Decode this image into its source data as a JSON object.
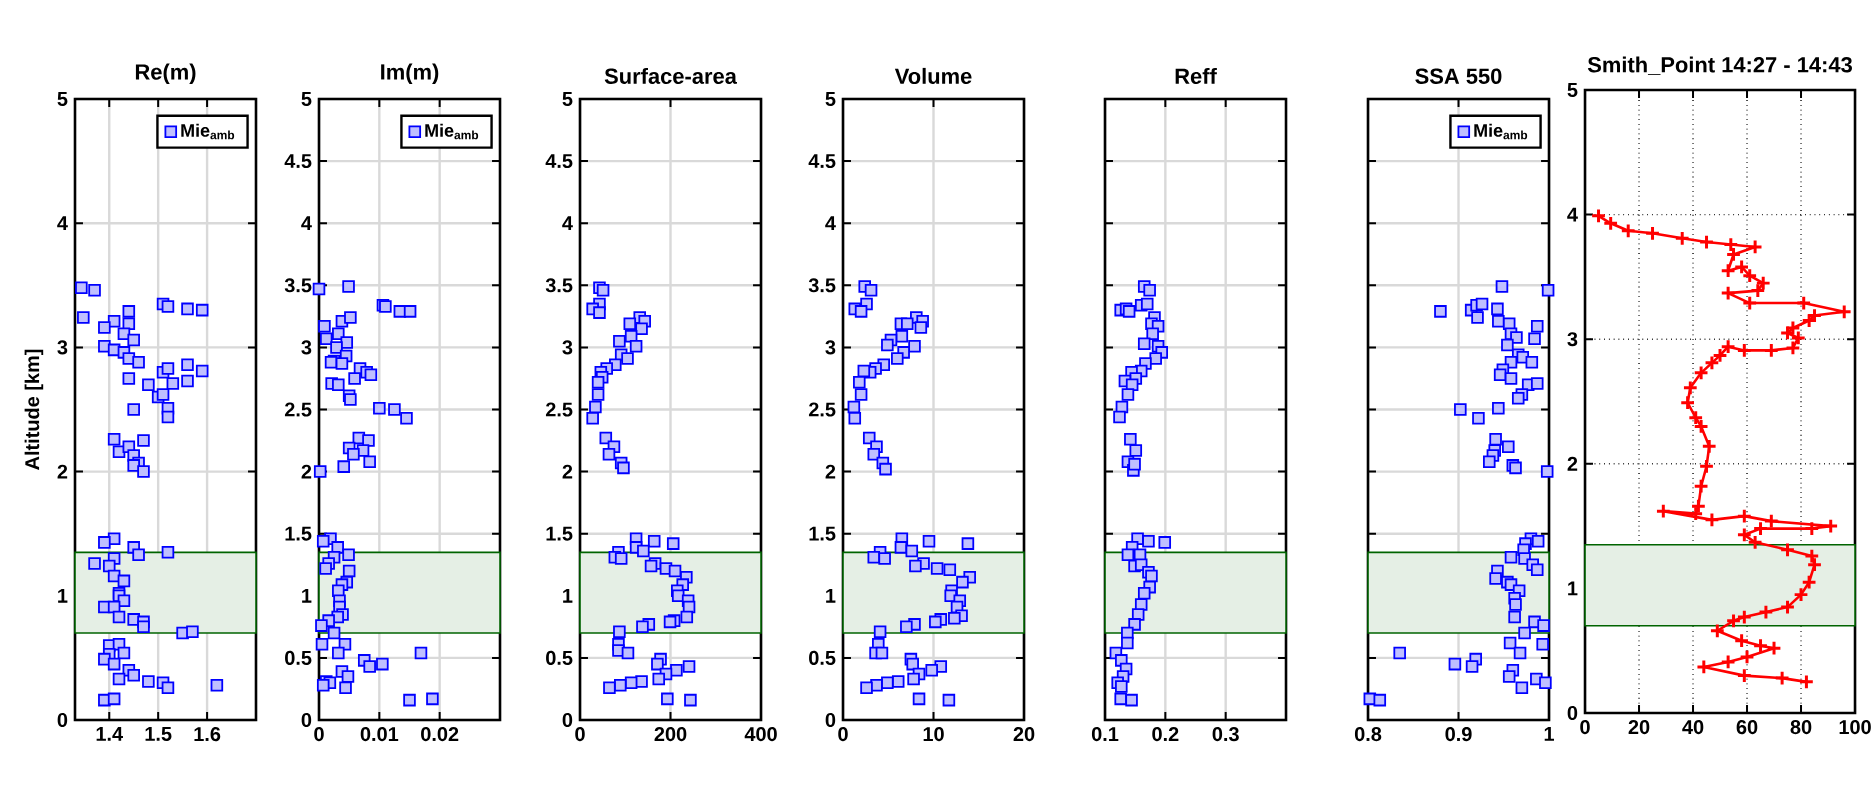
{
  "chart_data": [
    {
      "type": "scatter",
      "title": "Re(m)",
      "ylabel": "Altitude [km]",
      "xlim": [
        1.33,
        1.7
      ],
      "ylim": [
        0,
        5
      ],
      "xticks": [
        1.4,
        1.5,
        1.6
      ],
      "yticks": [
        0,
        1,
        2,
        3,
        4,
        5
      ],
      "grid": true,
      "legend": "top right",
      "marker": "square",
      "bands": [
        {
          "axis": "y",
          "from": 0.7,
          "to": 1.35,
          "color": "#006400"
        }
      ],
      "series": [
        {
          "name": "Mie$_{amb}$",
          "color": "#0000ff",
          "x": [
            1.343,
            1.37,
            1.347,
            1.51,
            1.52,
            1.56,
            1.59,
            1.41,
            1.44,
            1.44,
            1.39,
            1.43,
            1.45,
            1.39,
            1.41,
            1.43,
            1.44,
            1.46,
            1.44,
            1.48,
            1.51,
            1.52,
            1.56,
            1.56,
            1.59,
            1.53,
            1.5,
            1.51,
            1.52,
            1.52,
            1.45,
            1.41,
            1.47,
            1.42,
            1.44,
            1.45,
            1.46,
            1.45,
            1.47,
            1.41,
            1.39,
            1.45,
            1.46,
            1.52,
            1.41,
            1.37,
            1.4,
            1.41,
            1.43,
            1.42,
            1.42,
            1.43,
            1.39,
            1.41,
            1.42,
            1.45,
            1.47,
            1.47,
            1.55,
            1.57,
            1.4,
            1.42,
            1.43,
            1.4,
            1.39,
            1.41,
            1.44,
            1.45,
            1.42,
            1.48,
            1.51,
            1.52,
            1.62,
            1.39,
            1.41
          ],
          "values": [
            3.48,
            3.46,
            3.24,
            3.35,
            3.33,
            3.31,
            3.3,
            3.21,
            3.29,
            3.19,
            3.16,
            3.11,
            3.06,
            3.01,
            2.98,
            2.96,
            2.91,
            2.88,
            2.75,
            2.7,
            2.8,
            2.83,
            2.86,
            2.73,
            2.81,
            2.71,
            2.6,
            2.62,
            2.51,
            2.44,
            2.5,
            2.26,
            2.25,
            2.16,
            2.2,
            2.13,
            2.07,
            2.05,
            2.0,
            1.46,
            1.43,
            1.39,
            1.33,
            1.35,
            1.3,
            1.26,
            1.24,
            1.16,
            1.12,
            1.02,
            1.0,
            0.96,
            0.91,
            0.91,
            0.83,
            0.81,
            0.79,
            0.75,
            0.7,
            0.71,
            0.6,
            0.61,
            0.54,
            0.53,
            0.49,
            0.45,
            0.4,
            0.36,
            0.33,
            0.31,
            0.3,
            0.26,
            0.28,
            0.16,
            0.17
          ]
        }
      ]
    },
    {
      "type": "scatter",
      "title": "Im(m)",
      "xlim": [
        0,
        0.03
      ],
      "ylim": [
        0,
        5
      ],
      "xticks": [
        0,
        0.01,
        0.02
      ],
      "yticks": [
        0,
        0.5,
        1,
        1.5,
        2,
        2.5,
        3,
        3.5,
        4,
        4.5,
        5
      ],
      "grid": true,
      "legend": "top right",
      "marker": "square",
      "bands": [
        {
          "axis": "y",
          "from": 0.7,
          "to": 1.35,
          "color": "#006400"
        }
      ],
      "series": [
        {
          "name": "Mie$_{amb}$",
          "color": "#0000ff",
          "x": [
            0,
            0.0049,
            0.0106,
            0.011,
            0.0134,
            0.0151,
            0.0009,
            0.0038,
            0.0052,
            0.0012,
            0.0032,
            0.0046,
            0.0029,
            0.0045,
            0.0025,
            0.002,
            0.0038,
            0.0068,
            0.0079,
            0.0086,
            0.0059,
            0.0021,
            0.0032,
            0.005,
            0.0052,
            0.01,
            0.0125,
            0.0145,
            0.0066,
            0.0082,
            0.005,
            0.0073,
            0.0057,
            0.0084,
            0.0041,
            0.0002,
            0.0019,
            0.0007,
            0.0031,
            0.0049,
            0.0025,
            0.0016,
            0.0011,
            0.005,
            0.0046,
            0.0038,
            0.0032,
            0.0034,
            0.0034,
            0.0039,
            0.0031,
            0.0016,
            0.0004,
            0.0025,
            0.0005,
            0.0043,
            0.0032,
            0.0169,
            0.0075,
            0.0084,
            0.0105,
            0.0038,
            0.0048,
            0.0012,
            0.0018,
            0.0007,
            0.0044,
            0.015,
            0.0188
          ],
          "values": [
            3.47,
            3.49,
            3.34,
            3.33,
            3.29,
            3.29,
            3.17,
            3.21,
            3.24,
            3.07,
            3.11,
            3.04,
            3.0,
            2.93,
            2.89,
            2.88,
            2.87,
            2.83,
            2.8,
            2.78,
            2.75,
            2.71,
            2.7,
            2.61,
            2.58,
            2.51,
            2.5,
            2.43,
            2.27,
            2.25,
            2.19,
            2.17,
            2.14,
            2.08,
            2.04,
            2.0,
            1.46,
            1.44,
            1.39,
            1.33,
            1.31,
            1.26,
            1.22,
            1.2,
            1.11,
            1.09,
            1.04,
            0.96,
            0.91,
            0.85,
            0.83,
            0.8,
            0.76,
            0.7,
            0.61,
            0.61,
            0.54,
            0.54,
            0.48,
            0.43,
            0.45,
            0.39,
            0.35,
            0.31,
            0.3,
            0.28,
            0.26,
            0.16,
            0.17
          ]
        }
      ]
    },
    {
      "type": "scatter",
      "title": "Surface-area",
      "xlim": [
        0,
        400
      ],
      "ylim": [
        0,
        5
      ],
      "xticks": [
        0,
        200,
        400
      ],
      "yticks": [
        0,
        0.5,
        1,
        1.5,
        2,
        2.5,
        3,
        3.5,
        4,
        4.5,
        5
      ],
      "grid": true,
      "marker": "square",
      "bands": [
        {
          "axis": "y",
          "from": 0.7,
          "to": 1.35,
          "color": "#006400"
        }
      ],
      "series": [
        {
          "color": "#0000ff",
          "x": [
            43,
            51,
            43,
            28,
            43,
            132,
            143,
            110,
            136,
            113,
            87,
            124,
            91,
            105,
            78,
            59,
            46,
            49,
            40,
            40,
            34,
            28,
            57,
            75,
            64,
            91,
            96,
            124,
            164,
            206,
            124,
            140,
            85,
            77,
            91,
            166,
            157,
            190,
            210,
            235,
            227,
            215,
            217,
            239,
            241,
            236,
            208,
            199,
            152,
            138,
            87,
            85,
            85,
            106,
            178,
            171,
            241,
            213,
            190,
            174,
            136,
            113,
            89,
            65,
            193,
            244
          ],
          "values": [
            3.48,
            3.46,
            3.35,
            3.31,
            3.28,
            3.24,
            3.21,
            3.19,
            3.15,
            3.09,
            3.05,
            3.01,
            2.94,
            2.91,
            2.86,
            2.83,
            2.8,
            2.76,
            2.72,
            2.62,
            2.52,
            2.43,
            2.27,
            2.2,
            2.14,
            2.07,
            2.03,
            1.46,
            1.44,
            1.42,
            1.39,
            1.36,
            1.35,
            1.31,
            1.3,
            1.26,
            1.24,
            1.22,
            1.2,
            1.15,
            1.09,
            1.04,
            1.0,
            0.96,
            0.91,
            0.83,
            0.8,
            0.79,
            0.77,
            0.75,
            0.71,
            0.61,
            0.56,
            0.54,
            0.49,
            0.45,
            0.43,
            0.4,
            0.37,
            0.33,
            0.31,
            0.3,
            0.28,
            0.26,
            0.17,
            0.16
          ]
        }
      ]
    },
    {
      "type": "scatter",
      "title": "Volume",
      "xlim": [
        0,
        20
      ],
      "ylim": [
        0,
        5
      ],
      "xticks": [
        0,
        10,
        20
      ],
      "yticks": [
        0,
        0.5,
        1,
        1.5,
        2,
        2.5,
        3,
        3.5,
        4,
        4.5,
        5
      ],
      "grid": true,
      "marker": "square",
      "bands": [
        {
          "axis": "y",
          "from": 0.7,
          "to": 1.35,
          "color": "#006400"
        }
      ],
      "series": [
        {
          "color": "#0000ff",
          "x": [
            2.4,
            3.1,
            2.6,
            1.3,
            2.0,
            8.1,
            8.8,
            6.4,
            8.6,
            7.1,
            6.5,
            5.3,
            7.9,
            4.9,
            6.7,
            6.0,
            4.5,
            3.6,
            3.0,
            2.3,
            1.8,
            2.0,
            1.2,
            1.3,
            2.9,
            3.7,
            3.4,
            4.4,
            4.7,
            6.5,
            9.5,
            13.8,
            6.4,
            7.6,
            4.1,
            3.4,
            4.6,
            8.9,
            8.0,
            10.4,
            11.8,
            14.0,
            13.2,
            12.0,
            11.9,
            12.9,
            12.6,
            13.1,
            12.3,
            10.8,
            10.2,
            7.9,
            7.0,
            4.1,
            3.9,
            3.6,
            4.3,
            7.5,
            7.7,
            10.8,
            9.8,
            8.4,
            7.8,
            6.1,
            4.9,
            3.7,
            2.6,
            8.4,
            11.7
          ],
          "values": [
            3.49,
            3.46,
            3.35,
            3.31,
            3.29,
            3.24,
            3.21,
            3.19,
            3.16,
            3.19,
            3.09,
            3.06,
            3.01,
            3.02,
            2.96,
            2.91,
            2.86,
            2.83,
            2.8,
            2.81,
            2.72,
            2.62,
            2.52,
            2.43,
            2.27,
            2.2,
            2.14,
            2.07,
            2.02,
            1.46,
            1.44,
            1.42,
            1.39,
            1.36,
            1.35,
            1.31,
            1.3,
            1.26,
            1.24,
            1.22,
            1.21,
            1.15,
            1.11,
            1.04,
            1.0,
            0.96,
            0.91,
            0.84,
            0.82,
            0.81,
            0.79,
            0.77,
            0.75,
            0.71,
            0.61,
            0.54,
            0.54,
            0.49,
            0.45,
            0.43,
            0.4,
            0.37,
            0.33,
            0.31,
            0.3,
            0.28,
            0.26,
            0.17,
            0.16
          ]
        }
      ]
    },
    {
      "type": "scatter",
      "title": "Reff",
      "xlim": [
        0.1,
        0.4
      ],
      "ylim": [
        0,
        5
      ],
      "xticks": [
        0.1,
        0.2,
        0.3
      ],
      "yticks": [
        0,
        0.5,
        1,
        1.5,
        2,
        2.5,
        3,
        3.5,
        4,
        4.5,
        5
      ],
      "grid": true,
      "marker": "square",
      "tick_labels": "x",
      "bands": [
        {
          "axis": "y",
          "from": 0.7,
          "to": 1.35,
          "color": "#006400"
        }
      ],
      "series": [
        {
          "color": "#0000ff",
          "x": [
            0.165,
            0.174,
            0.16,
            0.17,
            0.126,
            0.135,
            0.14,
            0.182,
            0.177,
            0.188,
            0.179,
            0.165,
            0.188,
            0.194,
            0.184,
            0.167,
            0.16,
            0.144,
            0.151,
            0.133,
            0.145,
            0.138,
            0.128,
            0.124,
            0.142,
            0.151,
            0.138,
            0.147,
            0.149,
            0.154,
            0.172,
            0.199,
            0.145,
            0.138,
            0.158,
            0.149,
            0.16,
            0.172,
            0.177,
            0.174,
            0.165,
            0.16,
            0.155,
            0.149,
            0.137,
            0.137,
            0.118,
            0.127,
            0.135,
            0.13,
            0.121,
            0.127,
            0.126,
            0.144
          ],
          "values": [
            3.49,
            3.46,
            3.34,
            3.35,
            3.3,
            3.31,
            3.29,
            3.24,
            3.19,
            3.17,
            3.11,
            3.03,
            3.01,
            2.96,
            2.91,
            2.87,
            2.81,
            2.8,
            2.75,
            2.73,
            2.7,
            2.62,
            2.52,
            2.44,
            2.26,
            2.17,
            2.08,
            2.01,
            2.06,
            1.46,
            1.44,
            1.43,
            1.39,
            1.33,
            1.33,
            1.24,
            1.25,
            1.19,
            1.16,
            1.07,
            1.02,
            0.93,
            0.85,
            0.77,
            0.7,
            0.62,
            0.54,
            0.48,
            0.41,
            0.35,
            0.3,
            0.27,
            0.17,
            0.16
          ]
        }
      ]
    },
    {
      "type": "scatter",
      "title": "SSA 550",
      "xlim": [
        0.8,
        1
      ],
      "ylim": [
        0,
        5
      ],
      "xticks": [
        0.8,
        0.9,
        1
      ],
      "yticks": [
        0,
        0.5,
        1,
        1.5,
        2,
        2.5,
        3,
        3.5,
        4,
        4.5,
        5
      ],
      "grid": true,
      "legend": "top right",
      "marker": "square",
      "tick_labels": "x",
      "bands": [
        {
          "axis": "y",
          "from": 0.7,
          "to": 1.35,
          "color": "#006400"
        }
      ],
      "series": [
        {
          "name": "Mie$_{amb}$",
          "color": "#0000ff",
          "x": [
            0.948,
            0.999,
            0.88,
            0.914,
            0.92,
            0.926,
            0.921,
            0.943,
            0.944,
            0.956,
            0.987,
            0.958,
            0.964,
            0.984,
            0.954,
            0.966,
            0.971,
            0.981,
            0.958,
            0.949,
            0.946,
            0.958,
            0.977,
            0.987,
            0.97,
            0.966,
            0.902,
            0.944,
            0.922,
            0.941,
            0.955,
            0.94,
            0.938,
            0.934,
            0.96,
            0.963,
            0.998,
            0.98,
            0.988,
            0.974,
            0.972,
            0.958,
            0.973,
            0.982,
            0.987,
            0.943,
            0.941,
            0.954,
            0.958,
            0.967,
            0.962,
            0.963,
            0.962,
            0.984,
            0.994,
            0.973,
            0.993,
            0.957,
            0.968,
            0.835,
            0.919,
            0.896,
            0.915,
            0.96,
            0.956,
            0.986,
            0.996,
            0.97,
            0.802,
            0.813
          ],
          "values": [
            3.49,
            3.46,
            3.29,
            3.3,
            3.34,
            3.35,
            3.24,
            3.31,
            3.21,
            3.19,
            3.17,
            3.11,
            3.08,
            3.07,
            3.02,
            2.94,
            2.92,
            2.88,
            2.88,
            2.82,
            2.78,
            2.75,
            2.7,
            2.71,
            2.62,
            2.59,
            2.5,
            2.51,
            2.43,
            2.26,
            2.2,
            2.17,
            2.13,
            2.08,
            2.05,
            2.03,
            2.0,
            1.46,
            1.44,
            1.42,
            1.37,
            1.31,
            1.3,
            1.25,
            1.21,
            1.2,
            1.14,
            1.11,
            1.09,
            1.04,
            0.98,
            0.93,
            0.83,
            0.79,
            0.76,
            0.7,
            0.61,
            0.62,
            0.54,
            0.54,
            0.49,
            0.45,
            0.43,
            0.4,
            0.35,
            0.33,
            0.3,
            0.26,
            0.17,
            0.16
          ]
        }
      ]
    },
    {
      "type": "line",
      "title": "Smith_Point 14:27 - 14:43",
      "xlim": [
        0,
        100
      ],
      "ylim": [
        0,
        5
      ],
      "xticks": [
        0,
        20,
        40,
        60,
        80,
        100
      ],
      "yticks": [
        0,
        1,
        2,
        3,
        4,
        5
      ],
      "grid": true,
      "marker": "cross",
      "line_style": "solid",
      "bands": [
        {
          "axis": "y",
          "from": 0.7,
          "to": 1.35,
          "color": "#006400"
        }
      ],
      "series": [
        {
          "color": "#ff0000",
          "x": [
            5,
            9.5,
            16,
            25,
            36,
            45,
            54,
            63,
            55,
            53,
            58,
            61,
            66,
            64,
            53,
            61,
            81,
            96,
            85,
            83,
            77,
            75,
            79,
            77,
            69,
            59,
            53,
            50,
            47,
            43,
            39,
            38,
            41,
            43,
            46,
            45,
            43,
            42,
            41,
            29,
            47,
            59,
            69,
            91,
            84,
            65,
            59,
            63,
            75,
            84,
            85,
            83,
            80,
            75,
            67,
            59,
            55,
            49,
            58,
            65,
            70,
            60,
            53,
            44,
            59,
            73,
            82
          ],
          "values": [
            3.99,
            3.93,
            3.87,
            3.85,
            3.81,
            3.78,
            3.76,
            3.74,
            3.68,
            3.55,
            3.58,
            3.51,
            3.45,
            3.39,
            3.37,
            3.29,
            3.29,
            3.22,
            3.19,
            3.15,
            3.09,
            3.05,
            3.01,
            2.93,
            2.91,
            2.91,
            2.94,
            2.87,
            2.81,
            2.73,
            2.61,
            2.49,
            2.37,
            2.3,
            2.14,
            1.98,
            1.82,
            1.66,
            1.6,
            1.62,
            1.55,
            1.58,
            1.54,
            1.5,
            1.48,
            1.48,
            1.43,
            1.37,
            1.31,
            1.26,
            1.19,
            1.05,
            0.95,
            0.85,
            0.81,
            0.77,
            0.74,
            0.66,
            0.58,
            0.54,
            0.52,
            0.45,
            0.41,
            0.37,
            0.3,
            0.28,
            0.25
          ]
        }
      ]
    }
  ]
}
